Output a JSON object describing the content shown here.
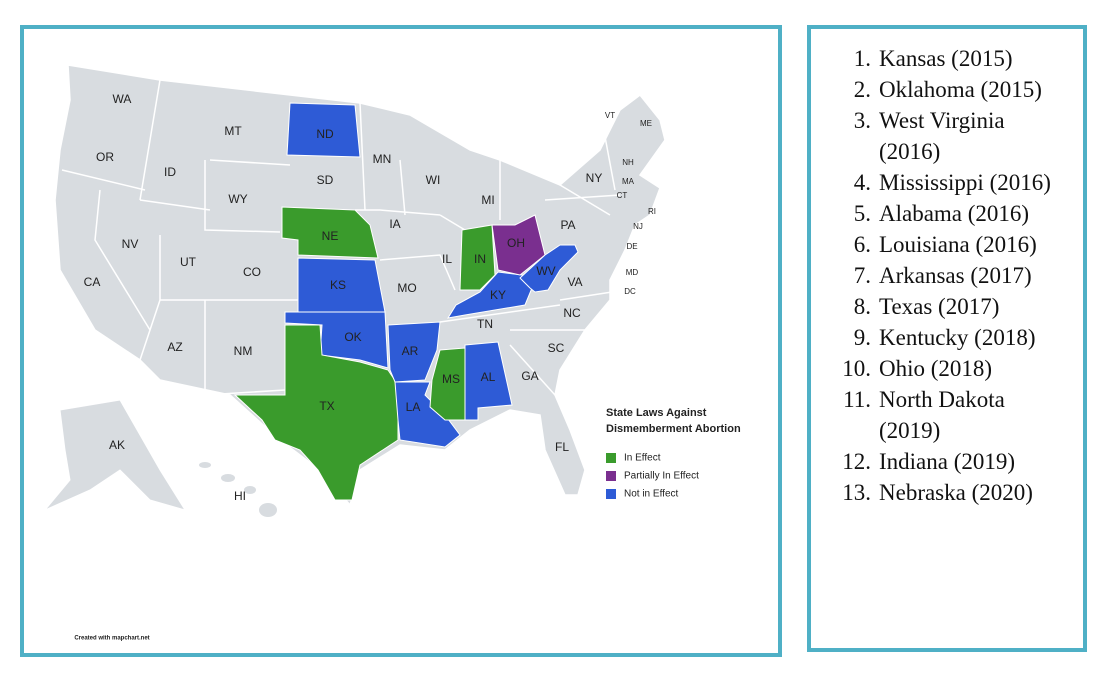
{
  "map": {
    "legend": {
      "title_lines": [
        "State Laws Against",
        "Dismemberment Abortion"
      ],
      "entries": [
        {
          "label": "In Effect",
          "color": "#3a9b2c"
        },
        {
          "label": "Partially In Effect",
          "color": "#7a2f8f"
        },
        {
          "label": "Not in Effect",
          "color": "#2e5bd6"
        }
      ]
    },
    "credit": "Created with mapchart.net",
    "states": [
      {
        "label": "WA"
      },
      {
        "label": "OR"
      },
      {
        "label": "CA"
      },
      {
        "label": "ID"
      },
      {
        "label": "NV"
      },
      {
        "label": "MT"
      },
      {
        "label": "WY"
      },
      {
        "label": "UT"
      },
      {
        "label": "AZ"
      },
      {
        "label": "CO"
      },
      {
        "label": "NM"
      },
      {
        "label": "ND",
        "status": 2
      },
      {
        "label": "SD"
      },
      {
        "label": "NE",
        "status": 0
      },
      {
        "label": "KS",
        "status": 2
      },
      {
        "label": "OK",
        "status": 2
      },
      {
        "label": "TX",
        "status": 0
      },
      {
        "label": "MN"
      },
      {
        "label": "IA"
      },
      {
        "label": "MO"
      },
      {
        "label": "AR",
        "status": 2
      },
      {
        "label": "LA",
        "status": 2
      },
      {
        "label": "WI"
      },
      {
        "label": "IL"
      },
      {
        "label": "MS",
        "status": 0
      },
      {
        "label": "MI"
      },
      {
        "label": "IN",
        "status": 0
      },
      {
        "label": "KY",
        "status": 2
      },
      {
        "label": "TN"
      },
      {
        "label": "AL",
        "status": 2
      },
      {
        "label": "OH",
        "status": 1
      },
      {
        "label": "WV",
        "status": 2
      },
      {
        "label": "GA"
      },
      {
        "label": "FL"
      },
      {
        "label": "PA"
      },
      {
        "label": "VA"
      },
      {
        "label": "NC"
      },
      {
        "label": "SC"
      },
      {
        "label": "NY"
      },
      {
        "label": "AK"
      },
      {
        "label": "HI"
      },
      {
        "label": "VT"
      },
      {
        "label": "ME"
      },
      {
        "label": "NH"
      },
      {
        "label": "MA"
      },
      {
        "label": "CT"
      },
      {
        "label": "RI"
      },
      {
        "label": "NJ"
      },
      {
        "label": "DE"
      },
      {
        "label": "MD"
      },
      {
        "label": "DC"
      }
    ]
  },
  "list": {
    "items": [
      {
        "number": "1.",
        "text": "Kansas (2015)"
      },
      {
        "number": "2.",
        "text": "Oklahoma (2015)"
      },
      {
        "number": "3.",
        "text": "West Virginia (2016)"
      },
      {
        "number": "4.",
        "text": "Mississippi (2016)"
      },
      {
        "number": "5.",
        "text": "Alabama (2016)"
      },
      {
        "number": "6.",
        "text": "Louisiana (2016)"
      },
      {
        "number": "7.",
        "text": "Arkansas (2017)"
      },
      {
        "number": "8.",
        "text": "Texas (2017)"
      },
      {
        "number": "9.",
        "text": "Kentucky (2018)"
      },
      {
        "number": "10.",
        "text": "Ohio (2018)"
      },
      {
        "number": "11.",
        "text": "North Dakota (2019)"
      },
      {
        "number": "12.",
        "text": "Indiana (2019)"
      },
      {
        "number": "13.",
        "text": "Nebraska (2020)"
      }
    ]
  }
}
